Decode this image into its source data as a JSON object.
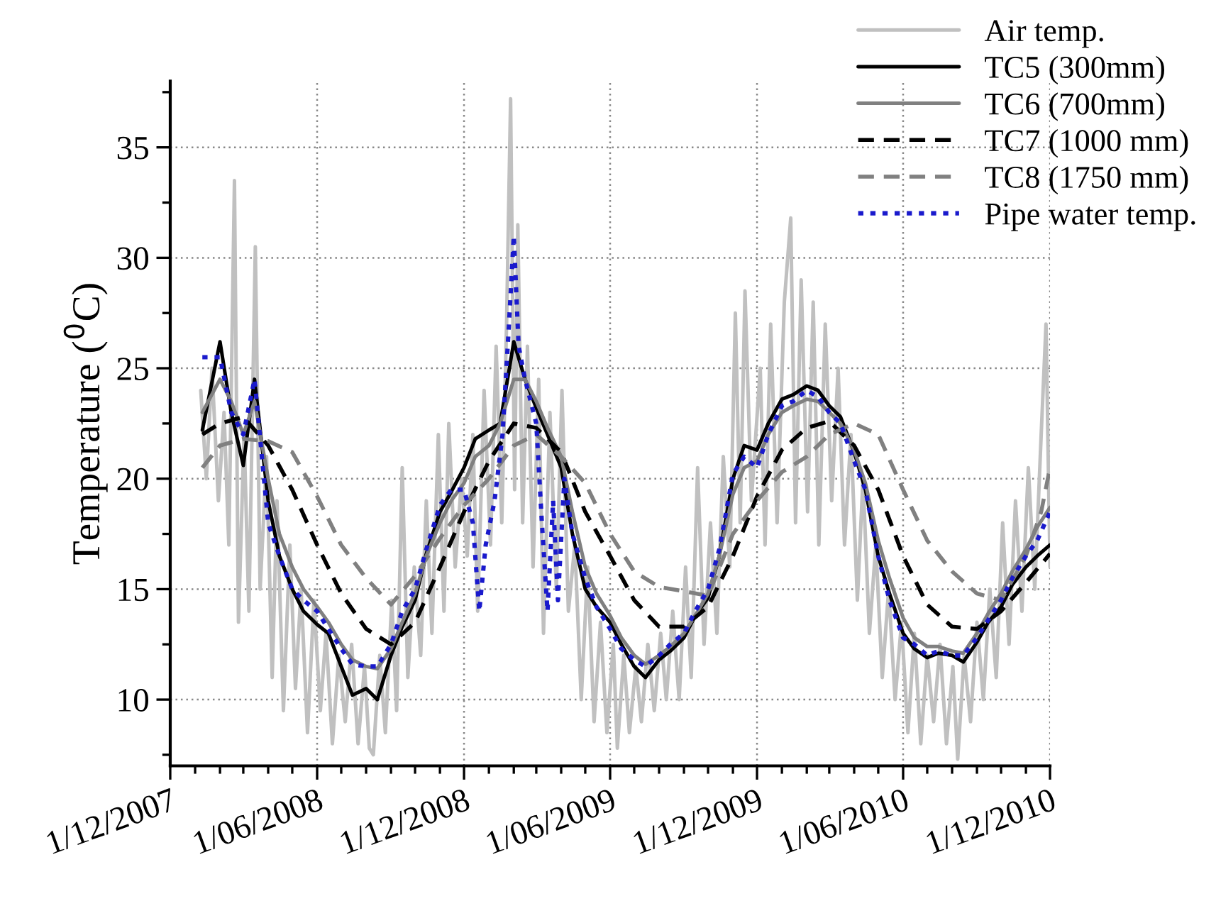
{
  "chart_data": {
    "type": "line",
    "ylabel": "Temperature ($^{0}$C)",
    "xlim": [
      "2007-12-01",
      "2010-12-01"
    ],
    "ylim": [
      7,
      38
    ],
    "xticks": [
      {
        "value": "2007-12-01",
        "label": "1/12/2007"
      },
      {
        "value": "2008-01-01",
        "label": null
      },
      {
        "value": "2008-02-01",
        "label": null
      },
      {
        "value": "2008-03-01",
        "label": null
      },
      {
        "value": "2008-04-01",
        "label": null
      },
      {
        "value": "2008-05-01",
        "label": null
      },
      {
        "value": "2008-06-01",
        "label": "1/06/2008"
      },
      {
        "value": "2008-07-01",
        "label": null
      },
      {
        "value": "2008-08-01",
        "label": null
      },
      {
        "value": "2008-09-01",
        "label": null
      },
      {
        "value": "2008-10-01",
        "label": null
      },
      {
        "value": "2008-11-01",
        "label": null
      },
      {
        "value": "2008-12-01",
        "label": "1/12/2008"
      },
      {
        "value": "2009-01-01",
        "label": null
      },
      {
        "value": "2009-02-01",
        "label": null
      },
      {
        "value": "2009-03-01",
        "label": null
      },
      {
        "value": "2009-04-01",
        "label": null
      },
      {
        "value": "2009-05-01",
        "label": null
      },
      {
        "value": "2009-06-01",
        "label": "1/06/2009"
      },
      {
        "value": "2009-07-01",
        "label": null
      },
      {
        "value": "2009-08-01",
        "label": null
      },
      {
        "value": "2009-09-01",
        "label": null
      },
      {
        "value": "2009-10-01",
        "label": null
      },
      {
        "value": "2009-11-01",
        "label": null
      },
      {
        "value": "2009-12-01",
        "label": "1/12/2009"
      },
      {
        "value": "2010-01-01",
        "label": null
      },
      {
        "value": "2010-02-01",
        "label": null
      },
      {
        "value": "2010-03-01",
        "label": null
      },
      {
        "value": "2010-04-01",
        "label": null
      },
      {
        "value": "2010-05-01",
        "label": null
      },
      {
        "value": "2010-06-01",
        "label": "1/06/2010"
      },
      {
        "value": "2010-07-01",
        "label": null
      },
      {
        "value": "2010-08-01",
        "label": null
      },
      {
        "value": "2010-09-01",
        "label": null
      },
      {
        "value": "2010-10-01",
        "label": null
      },
      {
        "value": "2010-11-01",
        "label": null
      },
      {
        "value": "2010-12-01",
        "label": "1/12/2010"
      }
    ],
    "yticks": [
      {
        "value": 7.5,
        "label": null
      },
      10,
      {
        "value": 12.5,
        "label": null
      },
      15,
      {
        "value": 17.5,
        "label": null
      },
      20,
      {
        "value": 22.5,
        "label": null
      },
      25,
      {
        "value": 27.5,
        "label": null
      },
      30,
      {
        "value": 32.5,
        "label": null
      },
      35,
      {
        "value": 37.5,
        "label": null
      }
    ],
    "grid": true,
    "legend": "top right",
    "x": [
      "2008-01-10",
      "2008-02-01",
      "2008-02-15",
      "2008-03-01",
      "2008-03-15",
      "2008-04-01",
      "2008-04-15",
      "2008-05-01",
      "2008-05-15",
      "2008-06-01",
      "2008-06-15",
      "2008-07-01",
      "2008-07-15",
      "2008-08-01",
      "2008-08-15",
      "2008-09-01",
      "2008-09-15",
      "2008-10-01",
      "2008-10-15",
      "2008-11-01",
      "2008-11-15",
      "2008-12-01",
      "2008-12-15",
      "2009-01-01",
      "2009-01-15",
      "2009-02-01",
      "2009-02-15",
      "2009-03-01",
      "2009-03-15",
      "2009-04-01",
      "2009-04-15",
      "2009-05-01",
      "2009-05-15",
      "2009-06-01",
      "2009-06-15",
      "2009-07-01",
      "2009-07-15",
      "2009-08-01",
      "2009-08-15",
      "2009-09-01",
      "2009-09-15",
      "2009-10-01",
      "2009-10-15",
      "2009-11-01",
      "2009-11-15",
      "2009-12-01",
      "2009-12-15",
      "2010-01-01",
      "2010-01-15",
      "2010-02-01",
      "2010-02-15",
      "2010-03-01",
      "2010-03-15",
      "2010-04-01",
      "2010-04-15",
      "2010-05-01",
      "2010-05-15",
      "2010-06-01",
      "2010-06-15",
      "2010-07-01",
      "2010-07-15",
      "2010-08-01",
      "2010-08-15",
      "2010-09-01",
      "2010-09-15",
      "2010-10-01",
      "2010-10-15",
      "2010-11-01",
      "2010-11-15",
      "2010-12-01"
    ],
    "series": [
      {
        "name": "Air temp.",
        "color": "#c0c0c0",
        "line_style": "solid",
        "x": [
          "2008-01-08",
          "2008-01-15",
          "2008-01-22",
          "2008-01-30",
          "2008-02-06",
          "2008-02-12",
          "2008-02-19",
          "2008-02-24",
          "2008-03-02",
          "2008-03-08",
          "2008-03-16",
          "2008-03-22",
          "2008-03-30",
          "2008-04-06",
          "2008-04-12",
          "2008-04-20",
          "2008-04-28",
          "2008-05-05",
          "2008-05-12",
          "2008-05-20",
          "2008-05-28",
          "2008-06-05",
          "2008-06-12",
          "2008-06-20",
          "2008-06-28",
          "2008-07-06",
          "2008-07-14",
          "2008-07-22",
          "2008-07-30",
          "2008-08-05",
          "2008-08-10",
          "2008-08-18",
          "2008-08-25",
          "2008-09-02",
          "2008-09-08",
          "2008-09-15",
          "2008-09-22",
          "2008-09-30",
          "2008-10-08",
          "2008-10-15",
          "2008-10-22",
          "2008-10-30",
          "2008-11-06",
          "2008-11-12",
          "2008-11-20",
          "2008-11-28",
          "2008-12-05",
          "2008-12-12",
          "2008-12-18",
          "2008-12-26",
          "2009-01-03",
          "2009-01-10",
          "2009-01-17",
          "2009-01-23",
          "2009-01-28",
          "2009-02-02",
          "2009-02-06",
          "2009-02-12",
          "2009-02-18",
          "2009-02-25",
          "2009-03-04",
          "2009-03-10",
          "2009-03-18",
          "2009-03-26",
          "2009-04-02",
          "2009-04-10",
          "2009-04-18",
          "2009-04-26",
          "2009-05-04",
          "2009-05-12",
          "2009-05-20",
          "2009-05-28",
          "2009-06-05",
          "2009-06-10",
          "2009-06-18",
          "2009-06-25",
          "2009-07-03",
          "2009-07-10",
          "2009-07-18",
          "2009-07-26",
          "2009-08-03",
          "2009-08-10",
          "2009-08-18",
          "2009-08-26",
          "2009-09-03",
          "2009-09-10",
          "2009-09-18",
          "2009-09-26",
          "2009-10-04",
          "2009-10-12",
          "2009-10-20",
          "2009-10-28",
          "2009-11-04",
          "2009-11-10",
          "2009-11-16",
          "2009-11-24",
          "2009-12-05",
          "2009-12-11",
          "2009-12-18",
          "2009-12-26",
          "2010-01-04",
          "2010-01-12",
          "2010-01-18",
          "2010-01-25",
          "2010-02-02",
          "2010-02-09",
          "2010-02-16",
          "2010-02-24",
          "2010-03-04",
          "2010-03-12",
          "2010-03-20",
          "2010-03-28",
          "2010-04-05",
          "2010-04-12",
          "2010-04-20",
          "2010-04-28",
          "2010-05-06",
          "2010-05-14",
          "2010-05-22",
          "2010-05-30",
          "2010-06-07",
          "2010-06-15",
          "2010-06-23",
          "2010-07-01",
          "2010-07-09",
          "2010-07-17",
          "2010-07-25",
          "2010-08-02",
          "2010-08-08",
          "2010-08-16",
          "2010-08-24",
          "2010-09-01",
          "2010-09-09",
          "2010-09-17",
          "2010-09-25",
          "2010-10-03",
          "2010-10-11",
          "2010-10-19",
          "2010-10-27",
          "2010-11-04",
          "2010-11-12",
          "2010-11-20",
          "2010-11-26",
          "2010-12-01"
        ],
        "values": [
          24,
          20,
          25,
          19,
          23,
          17,
          33.5,
          13.5,
          22,
          14,
          30.5,
          15,
          21,
          11,
          19,
          9.5,
          17,
          10.5,
          15,
          8.5,
          14.5,
          9.5,
          13,
          8,
          12,
          9,
          12.5,
          8,
          11.5,
          7.8,
          7.5,
          12,
          8.5,
          14.5,
          9.5,
          20.5,
          11,
          16,
          12,
          19,
          13,
          22,
          14,
          22.5,
          16,
          20,
          16.5,
          22,
          14,
          24,
          17,
          26,
          18,
          27,
          37.2,
          19.5,
          31.5,
          18,
          26,
          16,
          24.5,
          13,
          23,
          15,
          24,
          14,
          17,
          10,
          16,
          9,
          13.5,
          8.5,
          12.5,
          7.8,
          12,
          8.5,
          11.5,
          9,
          12.5,
          9.5,
          13,
          10,
          14,
          10,
          16,
          11,
          20.5,
          12.5,
          18,
          13,
          21,
          16,
          27.5,
          18,
          28.5,
          19,
          25,
          17,
          27,
          18,
          28,
          31.8,
          18,
          29,
          18.5,
          28,
          17,
          27,
          19,
          25,
          17,
          22,
          14.5,
          20,
          13,
          17,
          11,
          15,
          10,
          13.5,
          8.5,
          13,
          8,
          12,
          9,
          12.5,
          8,
          11.5,
          7.3,
          12,
          9,
          13.5,
          10,
          15,
          11,
          18,
          12.5,
          19,
          14,
          20.5,
          15,
          22,
          27,
          16
        ]
      },
      {
        "name": "TC5 (300mm)",
        "color": "#000000",
        "line_style": "solid",
        "values": [
          22.2,
          26.2,
          23,
          20.6,
          24.5,
          19,
          16.5,
          15,
          14,
          13.4,
          13,
          11.5,
          10.2,
          10.5,
          10,
          12,
          13.3,
          14.5,
          16.6,
          18.5,
          19.4,
          20.5,
          21.8,
          22.2,
          22.5,
          26.2,
          24.5,
          23.2,
          22,
          20.5,
          17.5,
          15,
          14.2,
          13.5,
          12.5,
          11.5,
          11,
          11.8,
          12.2,
          12.8,
          13.8,
          14.6,
          16.5,
          20,
          21.5,
          21.3,
          22.5,
          23.6,
          23.8,
          24.2,
          24,
          23.3,
          22.8,
          21.2,
          19.5,
          16.5,
          14.8,
          13,
          12.3,
          11.9,
          12.1,
          12,
          11.7,
          12.6,
          13.5,
          14.2,
          15.2,
          16,
          16.5,
          17
        ]
      },
      {
        "name": "TC6 (700mm)",
        "color": "#808080",
        "line_style": "solid",
        "values": [
          23,
          24.5,
          23.5,
          22,
          23.5,
          20,
          17.5,
          16,
          15,
          14.2,
          13.5,
          12.5,
          11.8,
          11.5,
          11.4,
          12.3,
          13.5,
          14.8,
          16.5,
          18,
          19,
          19.8,
          21,
          21.5,
          22.5,
          24.5,
          24.5,
          23.5,
          22.3,
          21,
          18.5,
          16,
          14.8,
          13.8,
          12.8,
          12,
          11.6,
          12,
          12.4,
          13,
          13.8,
          14.8,
          16.5,
          19.3,
          20.5,
          20.8,
          22,
          23,
          23.3,
          23.6,
          23.5,
          23,
          22.5,
          21.3,
          19.8,
          17.2,
          15.5,
          13.7,
          12.8,
          12.4,
          12.4,
          12.2,
          12.1,
          13,
          13.9,
          14.8,
          15.8,
          16.8,
          17.8,
          18.7
        ]
      },
      {
        "name": "TC7 (1000 mm)",
        "color": "#000000",
        "line_style": "dashed",
        "x": [
          "2008-01-10",
          "2008-02-01",
          "2008-03-01",
          "2008-04-01",
          "2008-05-01",
          "2008-06-01",
          "2008-07-01",
          "2008-08-01",
          "2008-09-01",
          "2008-10-01",
          "2008-11-01",
          "2008-12-01",
          "2009-01-01",
          "2009-02-01",
          "2009-03-01",
          "2009-04-01",
          "2009-05-01",
          "2009-06-01",
          "2009-07-01",
          "2009-08-01",
          "2009-09-01",
          "2009-10-01",
          "2009-11-01",
          "2009-12-01",
          "2010-01-01",
          "2010-02-01",
          "2010-03-01",
          "2010-04-01",
          "2010-05-01",
          "2010-06-01",
          "2010-07-01",
          "2010-08-01",
          "2010-09-01",
          "2010-10-01",
          "2010-11-01",
          "2010-12-01"
        ],
        "values": [
          22,
          22.5,
          22.8,
          21.5,
          19.5,
          17,
          14.8,
          13.2,
          12.5,
          13.5,
          16,
          18.5,
          20.8,
          22.5,
          22.3,
          21.2,
          18.5,
          16.5,
          14.5,
          13.3,
          13.3,
          14.2,
          16.5,
          19.2,
          21.3,
          22.3,
          22.6,
          21.5,
          19.5,
          16.5,
          14.3,
          13.3,
          13.2,
          14,
          15.3,
          16.6
        ]
      },
      {
        "name": "TC8 (1750 mm)",
        "color": "#808080",
        "line_style": "dashed",
        "x": [
          "2008-01-10",
          "2008-02-01",
          "2008-03-01",
          "2008-04-01",
          "2008-05-01",
          "2008-06-01",
          "2008-07-01",
          "2008-08-01",
          "2008-09-01",
          "2008-10-01",
          "2008-11-01",
          "2008-12-01",
          "2009-01-01",
          "2009-02-01",
          "2009-03-01",
          "2009-04-01",
          "2009-05-01",
          "2009-06-01",
          "2009-07-01",
          "2009-08-01",
          "2009-09-01",
          "2009-10-01",
          "2009-11-01",
          "2009-12-01",
          "2010-01-01",
          "2010-02-01",
          "2010-03-01",
          "2010-04-01",
          "2010-05-01",
          "2010-06-01",
          "2010-07-01",
          "2010-08-01",
          "2010-09-01",
          "2010-10-01",
          "2010-11-01",
          "2010-11-20",
          "2010-12-01"
        ],
        "values": [
          20.5,
          21.5,
          21.8,
          21.7,
          21.2,
          19.2,
          17,
          15.5,
          14.3,
          15.6,
          17.3,
          18.8,
          20,
          21.5,
          22,
          21,
          19.8,
          17.5,
          15.8,
          15.1,
          14.9,
          14.7,
          17.5,
          19,
          20.3,
          21,
          22,
          22.5,
          22,
          19.5,
          17.2,
          15.8,
          14.8,
          14.5,
          16.5,
          18.5,
          20.5
        ]
      },
      {
        "name": "Pipe water temp.",
        "color": "#1a1acc",
        "line_style": "dotted",
        "x": [
          "2008-01-10",
          "2008-02-01",
          "2008-02-15",
          "2008-03-01",
          "2008-03-15",
          "2008-04-01",
          "2008-04-15",
          "2008-05-01",
          "2008-05-15",
          "2008-06-01",
          "2008-06-15",
          "2008-07-01",
          "2008-07-15",
          "2008-08-01",
          "2008-08-15",
          "2008-09-01",
          "2008-09-15",
          "2008-10-01",
          "2008-10-15",
          "2008-11-01",
          "2008-11-15",
          "2008-12-01",
          "2008-12-12",
          "2008-12-20",
          "2008-12-28",
          "2009-01-08",
          "2009-01-18",
          "2009-01-26",
          "2009-02-01",
          "2009-02-07",
          "2009-02-15",
          "2009-03-01",
          "2009-03-08",
          "2009-03-15",
          "2009-03-22",
          "2009-03-28",
          "2009-04-05",
          "2009-04-15",
          "2009-05-01",
          "2009-05-15",
          "2009-06-01",
          "2009-06-15",
          "2009-07-01",
          "2009-07-15",
          "2009-08-01",
          "2009-08-15",
          "2009-09-01",
          "2009-09-15",
          "2009-10-01",
          "2009-10-15",
          "2009-11-01",
          "2009-11-15",
          "2009-12-01",
          "2009-12-15",
          "2010-01-01",
          "2010-01-15",
          "2010-02-01",
          "2010-02-15",
          "2010-03-01",
          "2010-03-15",
          "2010-04-01",
          "2010-04-15",
          "2010-05-01",
          "2010-05-15",
          "2010-06-01",
          "2010-06-15",
          "2010-07-01",
          "2010-07-15",
          "2010-08-01",
          "2010-08-15",
          "2010-09-01",
          "2010-09-15",
          "2010-10-01",
          "2010-10-15",
          "2010-11-01",
          "2010-11-15",
          "2010-12-01"
        ],
        "values": [
          25.5,
          25.5,
          23,
          22,
          24.5,
          18,
          16.5,
          15,
          14.5,
          14,
          13.2,
          12.3,
          11.6,
          11.5,
          11.5,
          12.5,
          14,
          15,
          16.8,
          18.8,
          19.5,
          19.5,
          18,
          14,
          17,
          19,
          22,
          27,
          31,
          26,
          24.5,
          22.5,
          18,
          14,
          19,
          14.5,
          20,
          17.5,
          15.5,
          14.2,
          13.2,
          12.3,
          11.8,
          11.5,
          12,
          12.5,
          13,
          14,
          15,
          16.8,
          20.2,
          21,
          20.5,
          22,
          23.3,
          23.5,
          24,
          23.7,
          23,
          22.5,
          20.8,
          19.5,
          16.5,
          14.5,
          12.8,
          12.5,
          12,
          12.2,
          12,
          12,
          12.8,
          13.6,
          14.5,
          15.5,
          16.5,
          17.2,
          18.5
        ]
      }
    ]
  }
}
